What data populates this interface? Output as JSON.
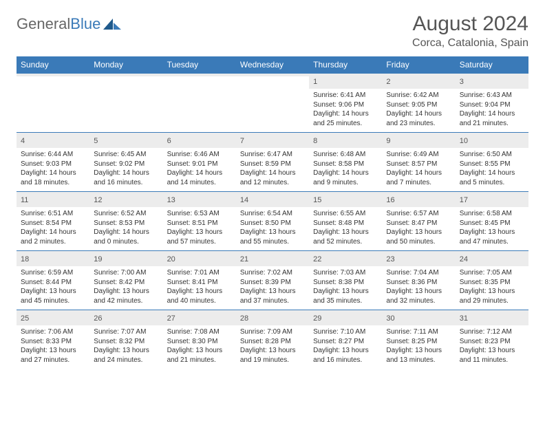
{
  "header": {
    "logo_general": "General",
    "logo_blue": "Blue",
    "month_title": "August 2024",
    "location": "Corca, Catalonia, Spain"
  },
  "colors": {
    "header_bar": "#3a7ab8",
    "daynum_bg": "#ececec",
    "text": "#333333",
    "title_text": "#555555"
  },
  "day_labels": [
    "Sunday",
    "Monday",
    "Tuesday",
    "Wednesday",
    "Thursday",
    "Friday",
    "Saturday"
  ],
  "weeks": [
    [
      {
        "n": "",
        "sr": "",
        "ss": "",
        "dl": ""
      },
      {
        "n": "",
        "sr": "",
        "ss": "",
        "dl": ""
      },
      {
        "n": "",
        "sr": "",
        "ss": "",
        "dl": ""
      },
      {
        "n": "",
        "sr": "",
        "ss": "",
        "dl": ""
      },
      {
        "n": "1",
        "sr": "Sunrise: 6:41 AM",
        "ss": "Sunset: 9:06 PM",
        "dl": "Daylight: 14 hours and 25 minutes."
      },
      {
        "n": "2",
        "sr": "Sunrise: 6:42 AM",
        "ss": "Sunset: 9:05 PM",
        "dl": "Daylight: 14 hours and 23 minutes."
      },
      {
        "n": "3",
        "sr": "Sunrise: 6:43 AM",
        "ss": "Sunset: 9:04 PM",
        "dl": "Daylight: 14 hours and 21 minutes."
      }
    ],
    [
      {
        "n": "4",
        "sr": "Sunrise: 6:44 AM",
        "ss": "Sunset: 9:03 PM",
        "dl": "Daylight: 14 hours and 18 minutes."
      },
      {
        "n": "5",
        "sr": "Sunrise: 6:45 AM",
        "ss": "Sunset: 9:02 PM",
        "dl": "Daylight: 14 hours and 16 minutes."
      },
      {
        "n": "6",
        "sr": "Sunrise: 6:46 AM",
        "ss": "Sunset: 9:01 PM",
        "dl": "Daylight: 14 hours and 14 minutes."
      },
      {
        "n": "7",
        "sr": "Sunrise: 6:47 AM",
        "ss": "Sunset: 8:59 PM",
        "dl": "Daylight: 14 hours and 12 minutes."
      },
      {
        "n": "8",
        "sr": "Sunrise: 6:48 AM",
        "ss": "Sunset: 8:58 PM",
        "dl": "Daylight: 14 hours and 9 minutes."
      },
      {
        "n": "9",
        "sr": "Sunrise: 6:49 AM",
        "ss": "Sunset: 8:57 PM",
        "dl": "Daylight: 14 hours and 7 minutes."
      },
      {
        "n": "10",
        "sr": "Sunrise: 6:50 AM",
        "ss": "Sunset: 8:55 PM",
        "dl": "Daylight: 14 hours and 5 minutes."
      }
    ],
    [
      {
        "n": "11",
        "sr": "Sunrise: 6:51 AM",
        "ss": "Sunset: 8:54 PM",
        "dl": "Daylight: 14 hours and 2 minutes."
      },
      {
        "n": "12",
        "sr": "Sunrise: 6:52 AM",
        "ss": "Sunset: 8:53 PM",
        "dl": "Daylight: 14 hours and 0 minutes."
      },
      {
        "n": "13",
        "sr": "Sunrise: 6:53 AM",
        "ss": "Sunset: 8:51 PM",
        "dl": "Daylight: 13 hours and 57 minutes."
      },
      {
        "n": "14",
        "sr": "Sunrise: 6:54 AM",
        "ss": "Sunset: 8:50 PM",
        "dl": "Daylight: 13 hours and 55 minutes."
      },
      {
        "n": "15",
        "sr": "Sunrise: 6:55 AM",
        "ss": "Sunset: 8:48 PM",
        "dl": "Daylight: 13 hours and 52 minutes."
      },
      {
        "n": "16",
        "sr": "Sunrise: 6:57 AM",
        "ss": "Sunset: 8:47 PM",
        "dl": "Daylight: 13 hours and 50 minutes."
      },
      {
        "n": "17",
        "sr": "Sunrise: 6:58 AM",
        "ss": "Sunset: 8:45 PM",
        "dl": "Daylight: 13 hours and 47 minutes."
      }
    ],
    [
      {
        "n": "18",
        "sr": "Sunrise: 6:59 AM",
        "ss": "Sunset: 8:44 PM",
        "dl": "Daylight: 13 hours and 45 minutes."
      },
      {
        "n": "19",
        "sr": "Sunrise: 7:00 AM",
        "ss": "Sunset: 8:42 PM",
        "dl": "Daylight: 13 hours and 42 minutes."
      },
      {
        "n": "20",
        "sr": "Sunrise: 7:01 AM",
        "ss": "Sunset: 8:41 PM",
        "dl": "Daylight: 13 hours and 40 minutes."
      },
      {
        "n": "21",
        "sr": "Sunrise: 7:02 AM",
        "ss": "Sunset: 8:39 PM",
        "dl": "Daylight: 13 hours and 37 minutes."
      },
      {
        "n": "22",
        "sr": "Sunrise: 7:03 AM",
        "ss": "Sunset: 8:38 PM",
        "dl": "Daylight: 13 hours and 35 minutes."
      },
      {
        "n": "23",
        "sr": "Sunrise: 7:04 AM",
        "ss": "Sunset: 8:36 PM",
        "dl": "Daylight: 13 hours and 32 minutes."
      },
      {
        "n": "24",
        "sr": "Sunrise: 7:05 AM",
        "ss": "Sunset: 8:35 PM",
        "dl": "Daylight: 13 hours and 29 minutes."
      }
    ],
    [
      {
        "n": "25",
        "sr": "Sunrise: 7:06 AM",
        "ss": "Sunset: 8:33 PM",
        "dl": "Daylight: 13 hours and 27 minutes."
      },
      {
        "n": "26",
        "sr": "Sunrise: 7:07 AM",
        "ss": "Sunset: 8:32 PM",
        "dl": "Daylight: 13 hours and 24 minutes."
      },
      {
        "n": "27",
        "sr": "Sunrise: 7:08 AM",
        "ss": "Sunset: 8:30 PM",
        "dl": "Daylight: 13 hours and 21 minutes."
      },
      {
        "n": "28",
        "sr": "Sunrise: 7:09 AM",
        "ss": "Sunset: 8:28 PM",
        "dl": "Daylight: 13 hours and 19 minutes."
      },
      {
        "n": "29",
        "sr": "Sunrise: 7:10 AM",
        "ss": "Sunset: 8:27 PM",
        "dl": "Daylight: 13 hours and 16 minutes."
      },
      {
        "n": "30",
        "sr": "Sunrise: 7:11 AM",
        "ss": "Sunset: 8:25 PM",
        "dl": "Daylight: 13 hours and 13 minutes."
      },
      {
        "n": "31",
        "sr": "Sunrise: 7:12 AM",
        "ss": "Sunset: 8:23 PM",
        "dl": "Daylight: 13 hours and 11 minutes."
      }
    ]
  ]
}
